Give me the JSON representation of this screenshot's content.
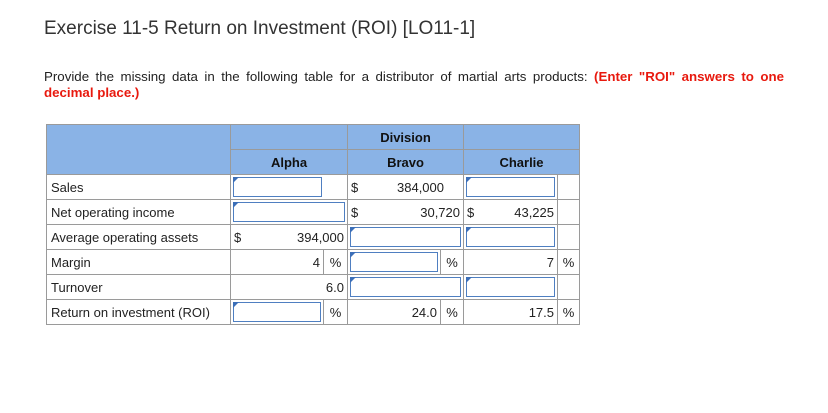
{
  "page": {
    "title": "Exercise 11-5 Return on Investment (ROI) [LO11-1]",
    "instructions": "Provide the missing data in the following table for a distributor of martial arts products:",
    "instructions_highlight": "(Enter \"ROI\" answers to one decimal place.)"
  },
  "table": {
    "group_header": "Division",
    "columns": [
      "Alpha",
      "Bravo",
      "Charlie"
    ],
    "currency_symbol": "$",
    "percent_symbol": "%",
    "rows": {
      "sales": {
        "label": "Sales",
        "bravo": "384,000"
      },
      "noi": {
        "label": "Net operating income",
        "bravo": "30,720",
        "charlie": "43,225"
      },
      "avg_assets": {
        "label": "Average operating assets",
        "alpha": "394,000"
      },
      "margin": {
        "label": "Margin",
        "alpha": "4",
        "charlie": "7"
      },
      "turnover": {
        "label": "Turnover",
        "alpha": "6.0"
      },
      "roi": {
        "label": "Return on investment (ROI)",
        "bravo": "24.0",
        "charlie": "17.5"
      }
    }
  },
  "colors": {
    "header_bg": "#8ab3e6",
    "input_border": "#4f7fc1",
    "highlight_red": "#e8190e"
  }
}
